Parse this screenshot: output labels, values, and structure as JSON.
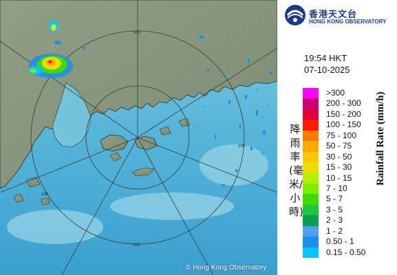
{
  "header": {
    "logo_cn": "香港天文台",
    "logo_en": "HONG KONG OBSERVATORY",
    "logo_icon": "hko-emblem-icon"
  },
  "observation": {
    "time": "19:54 HKT",
    "date": "07-10-2025"
  },
  "map": {
    "range_ring_label": "100",
    "copyright": "© Hong Kong Observatory",
    "colors": {
      "sea": "#5fb8d6",
      "land": "#8a9a7e",
      "rings": "#3a3a3a"
    }
  },
  "legend": {
    "title_cn": "降雨率(毫米/小時)",
    "title_en": "Rainfall Rate (mm/h)",
    "items": [
      {
        "label": ">300",
        "color": "#ff00ff"
      },
      {
        "label": "200 - 300",
        "color": "#c8006e"
      },
      {
        "label": "150 - 200",
        "color": "#e2003c"
      },
      {
        "label": "100 - 150",
        "color": "#ff1a00"
      },
      {
        "label": "75 - 100",
        "color": "#ff7800"
      },
      {
        "label": "50 - 75",
        "color": "#ffa800"
      },
      {
        "label": "30 - 50",
        "color": "#ffc800"
      },
      {
        "label": "15 - 30",
        "color": "#e8e000"
      },
      {
        "label": "10 - 15",
        "color": "#b4f000"
      },
      {
        "label": "7 - 10",
        "color": "#78f000"
      },
      {
        "label": "5 - 7",
        "color": "#3cdc00"
      },
      {
        "label": "3 - 5",
        "color": "#1ec83c"
      },
      {
        "label": "2 - 3",
        "color": "#0aa050"
      },
      {
        "label": "1 - 2",
        "color": "#50a0f0"
      },
      {
        "label": "0.50 - 1",
        "color": "#1e8cf0"
      },
      {
        "label": "0.15 - 0.50",
        "color": "#00c8ff"
      }
    ]
  }
}
